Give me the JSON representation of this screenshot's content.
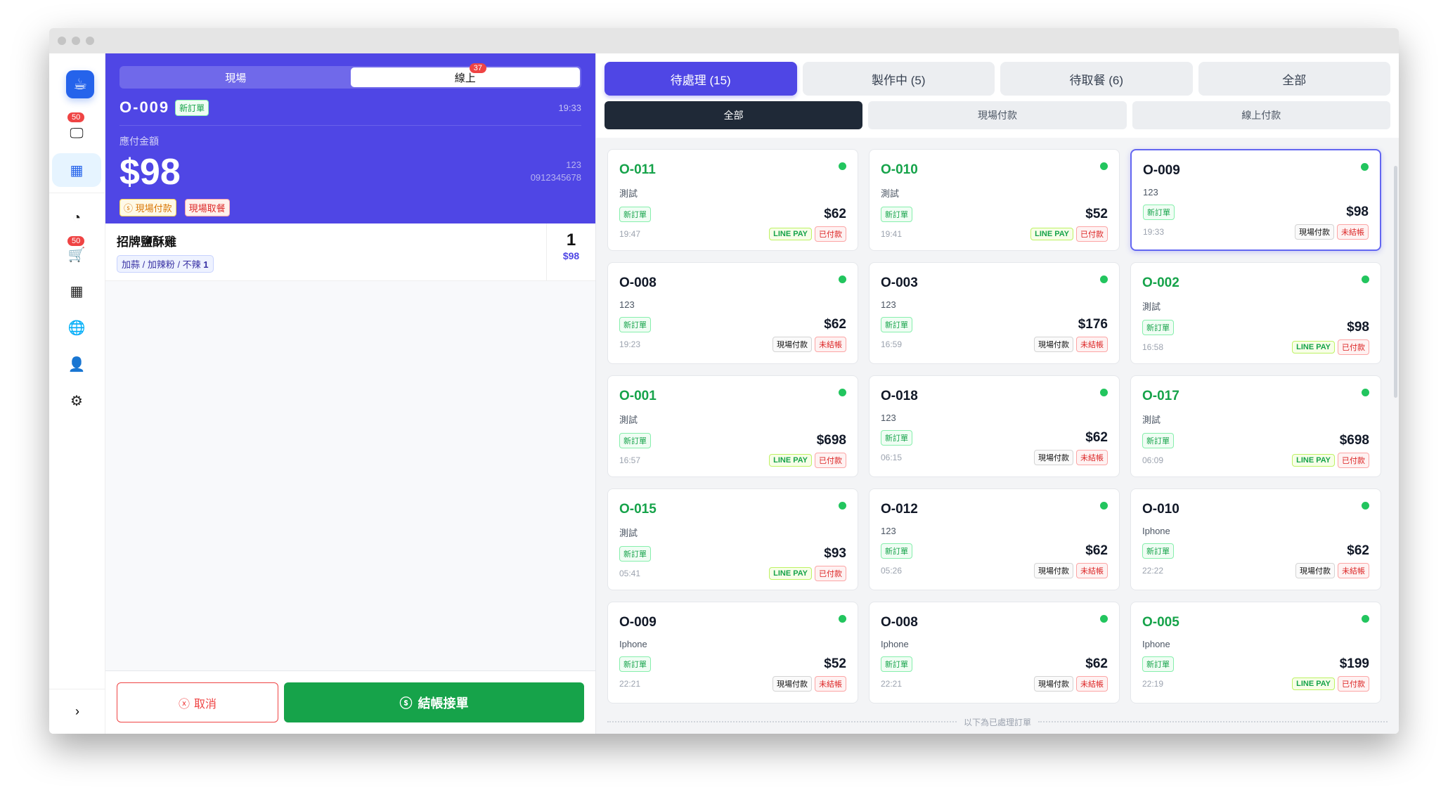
{
  "sidebar": {
    "badges": [
      "50",
      "50"
    ],
    "icons": [
      "coffee-icon",
      "monitor-icon",
      "calculator-icon",
      "gauge-icon",
      "cart-icon",
      "grid-icon",
      "globe-icon",
      "user-icon",
      "gear-icon",
      "chevron-right-icon"
    ]
  },
  "left": {
    "segments": [
      "現場",
      "線上"
    ],
    "online_badge": "37",
    "order_no": "O-009",
    "order_tag": "新訂單",
    "time": "19:33",
    "payable_label": "應付金額",
    "amount": "$98",
    "customer_name": "123",
    "customer_phone": "0912345678",
    "pay_tag": "現場付款",
    "pickup_tag": "現場取餐",
    "items": [
      {
        "name": "招牌鹽酥雞",
        "modifiers": "加蒜 / 加辣粉 / 不辣",
        "mod_qty": "1",
        "qty": "1",
        "price": "$98"
      }
    ],
    "cancel": "取消",
    "checkout": "結帳接單"
  },
  "right": {
    "status_tabs": [
      "待處理 (15)",
      "製作中 (5)",
      "待取餐 (6)",
      "全部"
    ],
    "pay_tabs": [
      "全部",
      "現場付款",
      "線上付款"
    ],
    "divider": "以下為已處理訂單",
    "orders": [
      {
        "no": "O-011",
        "name": "測試",
        "tag": "新訂單",
        "price": "$62",
        "time": "19:47",
        "pay": "LINE PAY",
        "status": "已付款",
        "online": true
      },
      {
        "no": "O-010",
        "name": "測試",
        "tag": "新訂單",
        "price": "$52",
        "time": "19:41",
        "pay": "LINE PAY",
        "status": "已付款",
        "online": true
      },
      {
        "no": "O-009",
        "name": "123",
        "tag": "新訂單",
        "price": "$98",
        "time": "19:33",
        "pay": "現場付款",
        "status": "未結帳",
        "online": false,
        "selected": true
      },
      {
        "no": "O-008",
        "name": "123",
        "tag": "新訂單",
        "price": "$62",
        "time": "19:23",
        "pay": "現場付款",
        "status": "未結帳",
        "online": false
      },
      {
        "no": "O-003",
        "name": "123",
        "tag": "新訂單",
        "price": "$176",
        "time": "16:59",
        "pay": "現場付款",
        "status": "未結帳",
        "online": false
      },
      {
        "no": "O-002",
        "name": "測試",
        "tag": "新訂單",
        "price": "$98",
        "time": "16:58",
        "pay": "LINE PAY",
        "status": "已付款",
        "online": true
      },
      {
        "no": "O-001",
        "name": "測試",
        "tag": "新訂單",
        "price": "$698",
        "time": "16:57",
        "pay": "LINE PAY",
        "status": "已付款",
        "online": true
      },
      {
        "no": "O-018",
        "name": "123",
        "tag": "新訂單",
        "price": "$62",
        "time": "06:15",
        "pay": "現場付款",
        "status": "未結帳",
        "online": false
      },
      {
        "no": "O-017",
        "name": "測試",
        "tag": "新訂單",
        "price": "$698",
        "time": "06:09",
        "pay": "LINE PAY",
        "status": "已付款",
        "online": true
      },
      {
        "no": "O-015",
        "name": "測試",
        "tag": "新訂單",
        "price": "$93",
        "time": "05:41",
        "pay": "LINE PAY",
        "status": "已付款",
        "online": true
      },
      {
        "no": "O-012",
        "name": "123",
        "tag": "新訂單",
        "price": "$62",
        "time": "05:26",
        "pay": "現場付款",
        "status": "未結帳",
        "online": false
      },
      {
        "no": "O-010",
        "name": "Iphone",
        "tag": "新訂單",
        "price": "$62",
        "time": "22:22",
        "pay": "現場付款",
        "status": "未結帳",
        "online": false
      },
      {
        "no": "O-009",
        "name": "Iphone",
        "tag": "新訂單",
        "price": "$52",
        "time": "22:21",
        "pay": "現場付款",
        "status": "未結帳",
        "online": false
      },
      {
        "no": "O-008",
        "name": "Iphone",
        "tag": "新訂單",
        "price": "$62",
        "time": "22:21",
        "pay": "現場付款",
        "status": "未結帳",
        "online": false
      },
      {
        "no": "O-005",
        "name": "Iphone",
        "tag": "新訂單",
        "price": "$199",
        "time": "22:19",
        "pay": "LINE PAY",
        "status": "已付款",
        "online": true
      }
    ]
  }
}
